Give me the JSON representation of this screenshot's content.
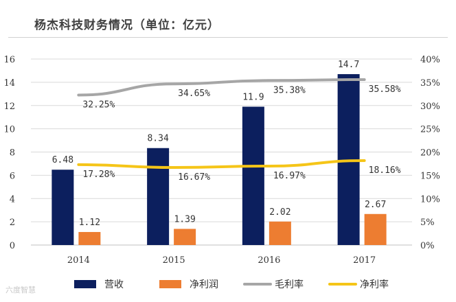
{
  "title": "杨杰科技财务情况（单位：亿元）",
  "watermark": "六度智慧",
  "chart_data": {
    "type": "bar",
    "title": "杨杰科技财务情况（单位：亿元）",
    "categories": [
      "2014",
      "2015",
      "2016",
      "2017"
    ],
    "series": [
      {
        "name": "营收",
        "kind": "bar",
        "axis": "left",
        "color": "#0c1f5e",
        "values": [
          6.48,
          8.34,
          11.9,
          14.7
        ],
        "labels": [
          "6.48",
          "8.34",
          "11.9",
          "14.7"
        ]
      },
      {
        "name": "净利润",
        "kind": "bar",
        "axis": "left",
        "color": "#ed7d31",
        "values": [
          1.12,
          1.39,
          2.02,
          2.67
        ],
        "labels": [
          "1.12",
          "1.39",
          "2.02",
          "2.67"
        ]
      },
      {
        "name": "毛利率",
        "kind": "line",
        "axis": "right",
        "color": "#a6a6a6",
        "values": [
          32.25,
          34.65,
          35.38,
          35.58
        ],
        "labels": [
          "32.25%",
          "34.65%",
          "35.38%",
          "35.58%"
        ]
      },
      {
        "name": "净利率",
        "kind": "line",
        "axis": "right",
        "color": "#f5c518",
        "values": [
          17.28,
          16.67,
          16.97,
          18.16
        ],
        "labels": [
          "17.28%",
          "16.67%",
          "16.97%",
          "18.16%"
        ]
      }
    ],
    "yleft": {
      "min": 0,
      "max": 16,
      "ticks": [
        "0",
        "2",
        "4",
        "6",
        "8",
        "10",
        "12",
        "14",
        "16"
      ]
    },
    "yright": {
      "min": 0,
      "max": 40,
      "ticks": [
        "0%",
        "5%",
        "10%",
        "15%",
        "20%",
        "25%",
        "30%",
        "35%",
        "40%"
      ]
    },
    "grid": true,
    "legend": "bottom"
  }
}
